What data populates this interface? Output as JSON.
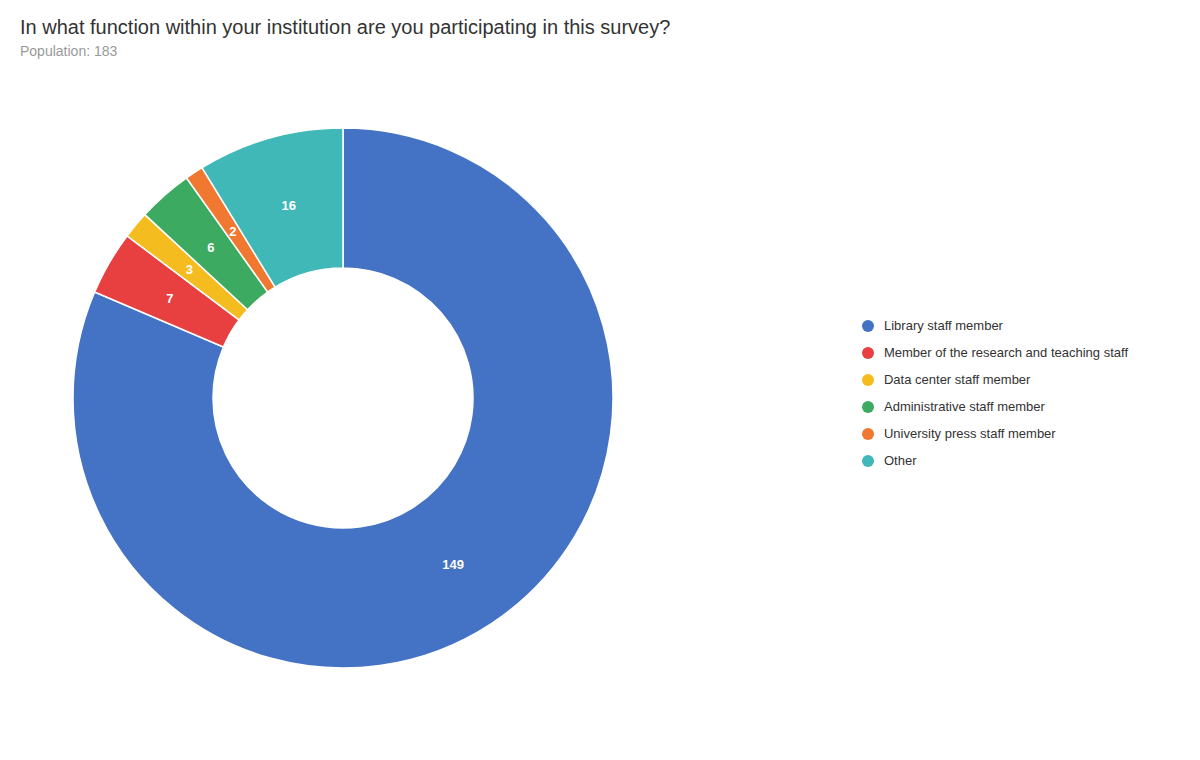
{
  "chart_data": {
    "type": "pie",
    "title": "In what function within your institution are you participating in this survey?",
    "subtitle": "Population: 183",
    "categories": [
      "Library staff member",
      "Member of the research and teaching staff",
      "Data center staff member",
      "Administrative staff member",
      "University press staff member",
      "Other"
    ],
    "values": [
      149,
      7,
      3,
      6,
      2,
      16
    ],
    "colors": [
      "#4472C4",
      "#E84040",
      "#F5BC20",
      "#3DAA62",
      "#F07830",
      "#40B8B8"
    ],
    "data_labels": true,
    "legend": "right"
  }
}
